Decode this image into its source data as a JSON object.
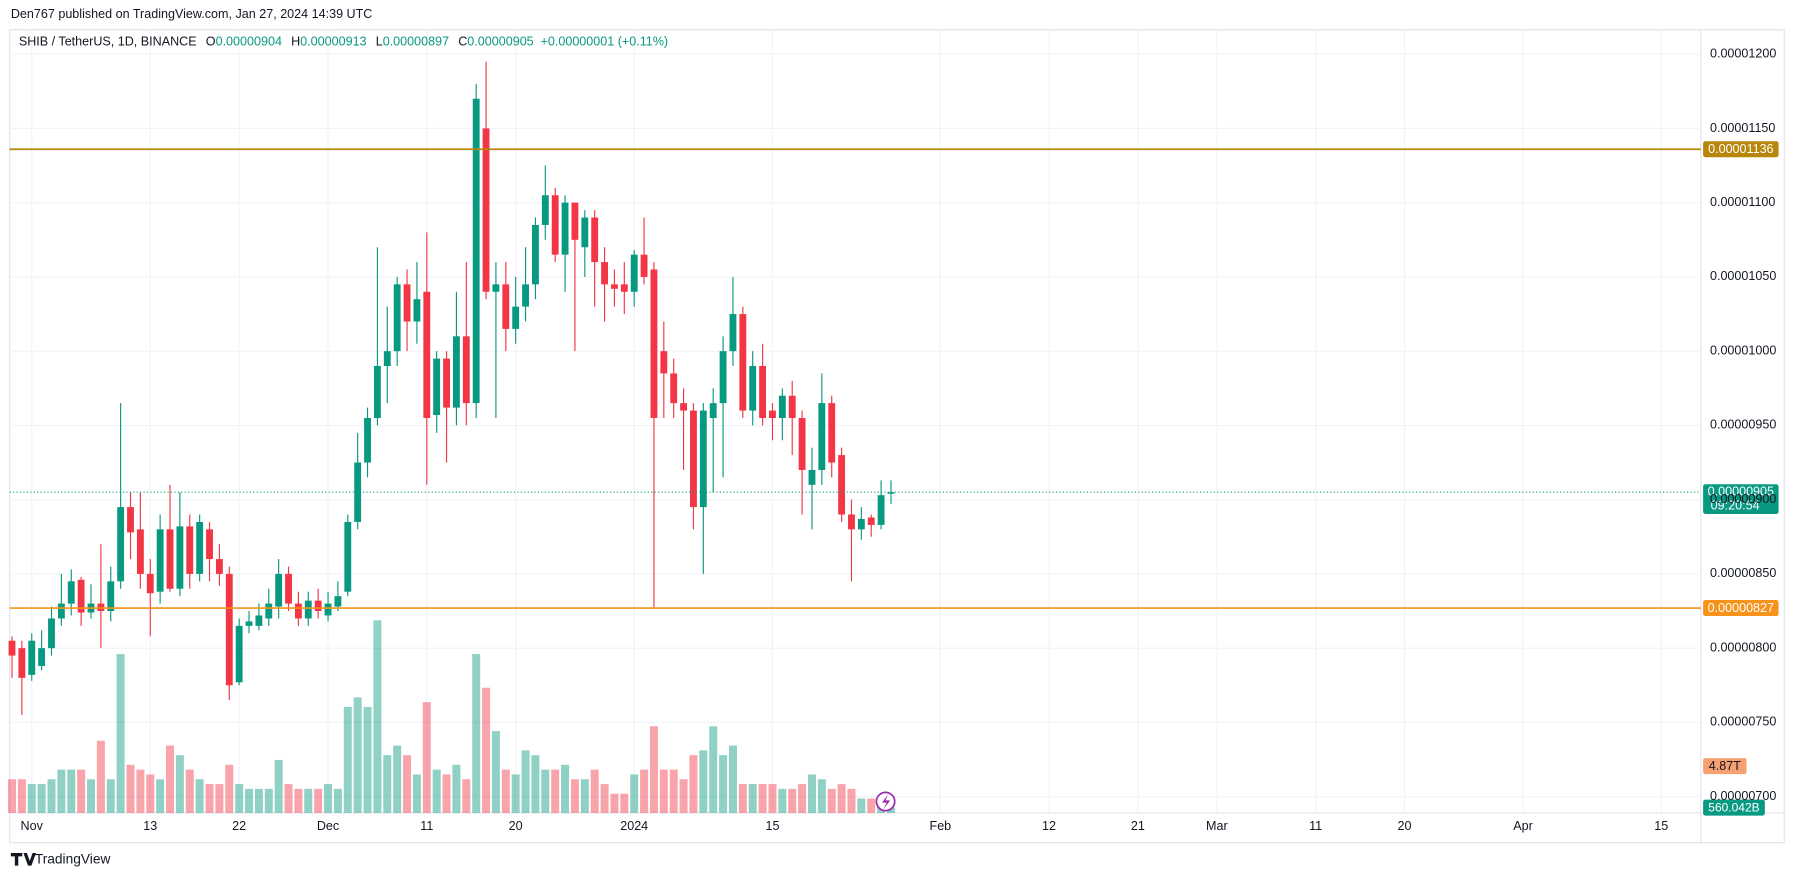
{
  "header": {
    "publisher": "Den767 published on TradingView.com, Jan 27, 2024 14:39 UTC",
    "footer": "TradingView"
  },
  "chart_data": {
    "type": "candlestick",
    "title": "SHIB / TetherUS, 1D, BINANCE",
    "ohlc_labels": [
      "O",
      "H",
      "L",
      "C"
    ],
    "change": "+0.00000001 (+0.11%)",
    "open": [
      8.05e-06,
      8e-06,
      7.82e-06,
      7.88e-06,
      8e-06,
      8.2e-06,
      8.3e-06,
      8.46e-06,
      8.24e-06,
      8.3e-06,
      8.25e-06,
      8.45e-06,
      8.95e-06,
      8.8e-06,
      8.5e-06,
      8.38e-06,
      8.8e-06,
      8.4e-06,
      8.82e-06,
      8.5e-06,
      8.8e-06,
      8.6e-06,
      8.5e-06,
      7.77e-06,
      8.15e-06,
      8.15e-06,
      8.2e-06,
      8.28e-06,
      8.5e-06,
      8.3e-06,
      8.2e-06,
      8.32e-06,
      8.22e-06,
      8.28e-06,
      8.38e-06,
      8.85e-06,
      9.25e-06,
      9.55e-06,
      9.9e-06,
      1e-05,
      1.045e-05,
      1.02e-05,
      1.04e-05,
      9.57e-06,
      9.95e-06,
      9.62e-06,
      1.01e-05,
      9.65e-06,
      1.15e-05,
      1.04e-05,
      1.045e-05,
      1.015e-05,
      1.03e-05,
      1.045e-05,
      1.085e-05,
      1.105e-05,
      1.065e-05,
      1.1e-05,
      1.07e-05,
      1.09e-05,
      1.06e-05,
      1.045e-05,
      1.045e-05,
      1.04e-05,
      1.065e-05,
      1.055e-05,
      1e-05,
      9.85e-06,
      9.65e-06,
      9.6e-06,
      8.95e-06,
      9.55e-06,
      9.65e-06,
      1e-05,
      1.025e-05,
      9.6e-06,
      9.9e-06,
      9.6e-06,
      9.55e-06,
      9.7e-06,
      9.55e-06,
      9.1e-06,
      9.2e-06,
      9.65e-06,
      9.3e-06,
      8.9e-06,
      8.8e-06,
      8.88e-06,
      8.83e-06,
      9.04e-06
    ],
    "high": [
      8.08e-06,
      8.05e-06,
      8.1e-06,
      8.12e-06,
      8.28e-06,
      8.5e-06,
      8.53e-06,
      8.48e-06,
      8.43e-06,
      8.7e-06,
      8.55e-06,
      9.65e-06,
      9.05e-06,
      9.05e-06,
      8.6e-06,
      8.9e-06,
      9.1e-06,
      9.05e-06,
      8.9e-06,
      8.9e-06,
      8.85e-06,
      8.7e-06,
      8.55e-06,
      8.2e-06,
      8.25e-06,
      8.3e-06,
      8.4e-06,
      8.6e-06,
      8.55e-06,
      8.38e-06,
      8.38e-06,
      8.4e-06,
      8.38e-06,
      8.45e-06,
      8.9e-06,
      9.45e-06,
      9.62e-06,
      1.07e-05,
      1.03e-05,
      1.05e-05,
      1.055e-05,
      1.06e-05,
      1.08e-05,
      1e-05,
      1e-05,
      1.04e-05,
      1.06e-05,
      1.18e-05,
      1.195e-05,
      1.06e-05,
      1.06e-05,
      1.05e-05,
      1.07e-05,
      1.09e-05,
      1.125e-05,
      1.11e-05,
      1.105e-05,
      1.1e-05,
      1.095e-05,
      1.095e-05,
      1.07e-05,
      1.055e-05,
      1.06e-05,
      1.068e-05,
      1.09e-05,
      1.06e-05,
      1.02e-05,
      9.95e-06,
      9.75e-06,
      9.65e-06,
      9.65e-06,
      9.75e-06,
      1.01e-05,
      1.05e-05,
      1.03e-05,
      1e-05,
      1.005e-05,
      9.65e-06,
      9.75e-06,
      9.8e-06,
      9.6e-06,
      9.35e-06,
      9.85e-06,
      9.7e-06,
      9.35e-06,
      9e-06,
      8.95e-06,
      8.9e-06,
      9.13e-06,
      9.13e-06
    ],
    "low": [
      7.8e-06,
      7.55e-06,
      7.78e-06,
      7.85e-06,
      7.95e-06,
      8.15e-06,
      8.22e-06,
      8.15e-06,
      8.2e-06,
      8e-06,
      8.18e-06,
      8.4e-06,
      8.6e-06,
      8.4e-06,
      8.08e-06,
      8.3e-06,
      8.38e-06,
      8.35e-06,
      8.4e-06,
      8.45e-06,
      8.45e-06,
      8.42e-06,
      7.65e-06,
      7.75e-06,
      8.1e-06,
      8.12e-06,
      8.15e-06,
      8.2e-06,
      8.25e-06,
      8.15e-06,
      8.15e-06,
      8.2e-06,
      8.18e-06,
      8.25e-06,
      8.35e-06,
      8.8e-06,
      9.15e-06,
      9.5e-06,
      9.65e-06,
      9.9e-06,
      1e-05,
      1.005e-05,
      9.1e-06,
      9.45e-06,
      9.25e-06,
      9.5e-06,
      9.5e-06,
      9.55e-06,
      1.035e-05,
      9.55e-06,
      1e-05,
      1.005e-05,
      1.02e-05,
      1.035e-05,
      1.075e-05,
      1.06e-05,
      1.04e-05,
      1e-05,
      1.05e-05,
      1.03e-05,
      1.02e-05,
      1.03e-05,
      1.025e-05,
      1.03e-05,
      1.045e-05,
      8.27e-06,
      9.55e-06,
      9.55e-06,
      9.2e-06,
      8.8e-06,
      8.5e-06,
      9.05e-06,
      9.15e-06,
      9.9e-06,
      9.55e-06,
      9.5e-06,
      9.5e-06,
      9.4e-06,
      9.4e-06,
      9.3e-06,
      8.9e-06,
      8.8e-06,
      9.1e-06,
      9.15e-06,
      8.85e-06,
      8.45e-06,
      8.73e-06,
      8.75e-06,
      8.8e-06,
      8.97e-06
    ],
    "close": [
      7.95e-06,
      7.8e-06,
      8.05e-06,
      8e-06,
      8.2e-06,
      8.3e-06,
      8.45e-06,
      8.24e-06,
      8.3e-06,
      8.25e-06,
      8.45e-06,
      8.95e-06,
      8.78e-06,
      8.5e-06,
      8.37e-06,
      8.8e-06,
      8.4e-06,
      8.82e-06,
      8.5e-06,
      8.85e-06,
      8.6e-06,
      8.5e-06,
      7.75e-06,
      8.15e-06,
      8.18e-06,
      8.22e-06,
      8.3e-06,
      8.5e-06,
      8.3e-06,
      8.2e-06,
      8.32e-06,
      8.25e-06,
      8.3e-06,
      8.35e-06,
      8.85e-06,
      9.25e-06,
      9.55e-06,
      9.9e-06,
      1e-05,
      1.045e-05,
      1.02e-05,
      1.035e-05,
      9.55e-06,
      9.95e-06,
      9.62e-06,
      1.01e-05,
      9.65e-06,
      1.17e-05,
      1.04e-05,
      1.045e-05,
      1.015e-05,
      1.03e-05,
      1.045e-05,
      1.085e-05,
      1.105e-05,
      1.065e-05,
      1.1e-05,
      1.075e-05,
      1.09e-05,
      1.06e-05,
      1.045e-05,
      1.042e-05,
      1.04e-05,
      1.065e-05,
      1.05e-05,
      9.55e-06,
      9.85e-06,
      9.65e-06,
      9.6e-06,
      8.95e-06,
      9.6e-06,
      9.65e-06,
      1e-05,
      1.025e-05,
      9.6e-06,
      9.9e-06,
      9.55e-06,
      9.55e-06,
      9.7e-06,
      9.55e-06,
      9.2e-06,
      9.2e-06,
      9.65e-06,
      9.25e-06,
      8.9e-06,
      8.8e-06,
      8.87e-06,
      8.83e-06,
      9.03e-06,
      9.05e-06
    ],
    "volume": [
      3500000000000.0,
      3500000000000.0,
      3000000000000.0,
      3000000000000.0,
      3500000000000.0,
      4500000000000.0,
      4500000000000.0,
      4500000000000.0,
      3500000000000.0,
      7500000000000.0,
      3500000000000.0,
      16500000000000.0,
      5000000000000.0,
      4500000000000.0,
      4000000000000.0,
      3500000000000.0,
      7000000000000.0,
      6000000000000.0,
      4500000000000.0,
      3500000000000.0,
      3000000000000.0,
      3000000000000.0,
      5000000000000.0,
      3000000000000.0,
      2500000000000.0,
      2500000000000.0,
      2500000000000.0,
      5500000000000.0,
      3000000000000.0,
      2500000000000.0,
      2500000000000.0,
      2500000000000.0,
      3000000000000.0,
      2500000000000.0,
      11000000000000.0,
      12000000000000.0,
      11000000000000.0,
      20000000000000.0,
      6000000000000.0,
      7000000000000.0,
      6000000000000.0,
      4000000000000.0,
      11500000000000.0,
      4500000000000.0,
      4000000000000.0,
      5000000000000.0,
      3500000000000.0,
      16500000000000.0,
      13000000000000.0,
      8500000000000.0,
      4500000000000.0,
      4000000000000.0,
      6500000000000.0,
      6000000000000.0,
      4500000000000.0,
      4500000000000.0,
      5000000000000.0,
      3500000000000.0,
      3500000000000.0,
      4500000000000.0,
      3000000000000.0,
      2000000000000.0,
      2000000000000.0,
      4000000000000.0,
      4500000000000.0,
      9000000000000.0,
      4500000000000.0,
      4500000000000.0,
      3500000000000.0,
      6000000000000.0,
      6500000000000.0,
      9000000000000.0,
      6000000000000.0,
      7000000000000.0,
      3000000000000.0,
      3000000000000.0,
      3000000000000.0,
      3000000000000.0,
      2500000000000.0,
      2500000000000.0,
      3000000000000.0,
      4000000000000.0,
      3500000000000.0,
      2500000000000.0,
      3000000000000.0,
      2500000000000.0,
      1500000000000.0,
      1500000000000.0,
      1200000000000.0,
      560042000000
    ],
    "up_color": "#089981",
    "down_color": "#f23645",
    "xlim": [
      0,
      171
    ],
    "xticks": [
      {
        "value": 2,
        "label": "Nov"
      },
      {
        "value": 14,
        "label": "13"
      },
      {
        "value": 23,
        "label": "22"
      },
      {
        "value": 32,
        "label": "Dec"
      },
      {
        "value": 42,
        "label": "11"
      },
      {
        "value": 51,
        "label": "20"
      },
      {
        "value": 63,
        "label": "2024"
      },
      {
        "value": 77,
        "label": "15"
      },
      {
        "value": 94,
        "label": "Feb"
      },
      {
        "value": 105,
        "label": "12"
      },
      {
        "value": 114,
        "label": "21"
      },
      {
        "value": 122,
        "label": "Mar"
      },
      {
        "value": 132,
        "label": "11"
      },
      {
        "value": 141,
        "label": "20"
      },
      {
        "value": 153,
        "label": "Apr"
      },
      {
        "value": 167,
        "label": "15"
      }
    ],
    "ylim": [
      6.89e-06,
      1.208e-05
    ],
    "yticks": [
      {
        "value": 7e-06,
        "label": "0.00000700"
      },
      {
        "value": 7.5e-06,
        "label": "0.00000750"
      },
      {
        "value": 8e-06,
        "label": "0.00000800"
      },
      {
        "value": 8.5e-06,
        "label": "0.00000850"
      },
      {
        "value": 9e-06,
        "label": "0.00000900"
      },
      {
        "value": 9.5e-06,
        "label": "0.00000950"
      },
      {
        "value": 1e-05,
        "label": "0.00001000"
      },
      {
        "value": 1.05e-05,
        "label": "0.00001050"
      },
      {
        "value": 1.1e-05,
        "label": "0.00001100"
      },
      {
        "value": 1.15e-05,
        "label": "0.00001150"
      },
      {
        "value": 1.2e-05,
        "label": "0.00001200"
      }
    ],
    "volume_lim": [
      0,
      80000000000000.0
    ],
    "levels": [
      {
        "value": 1.136e-05,
        "color": "#b8860b"
      },
      {
        "value": 8.27e-06,
        "color": "#f7931a"
      }
    ],
    "countdown": "09:20:54",
    "volume_ma_label": "4.87T",
    "volume_label": "560.042B",
    "grid": true
  }
}
